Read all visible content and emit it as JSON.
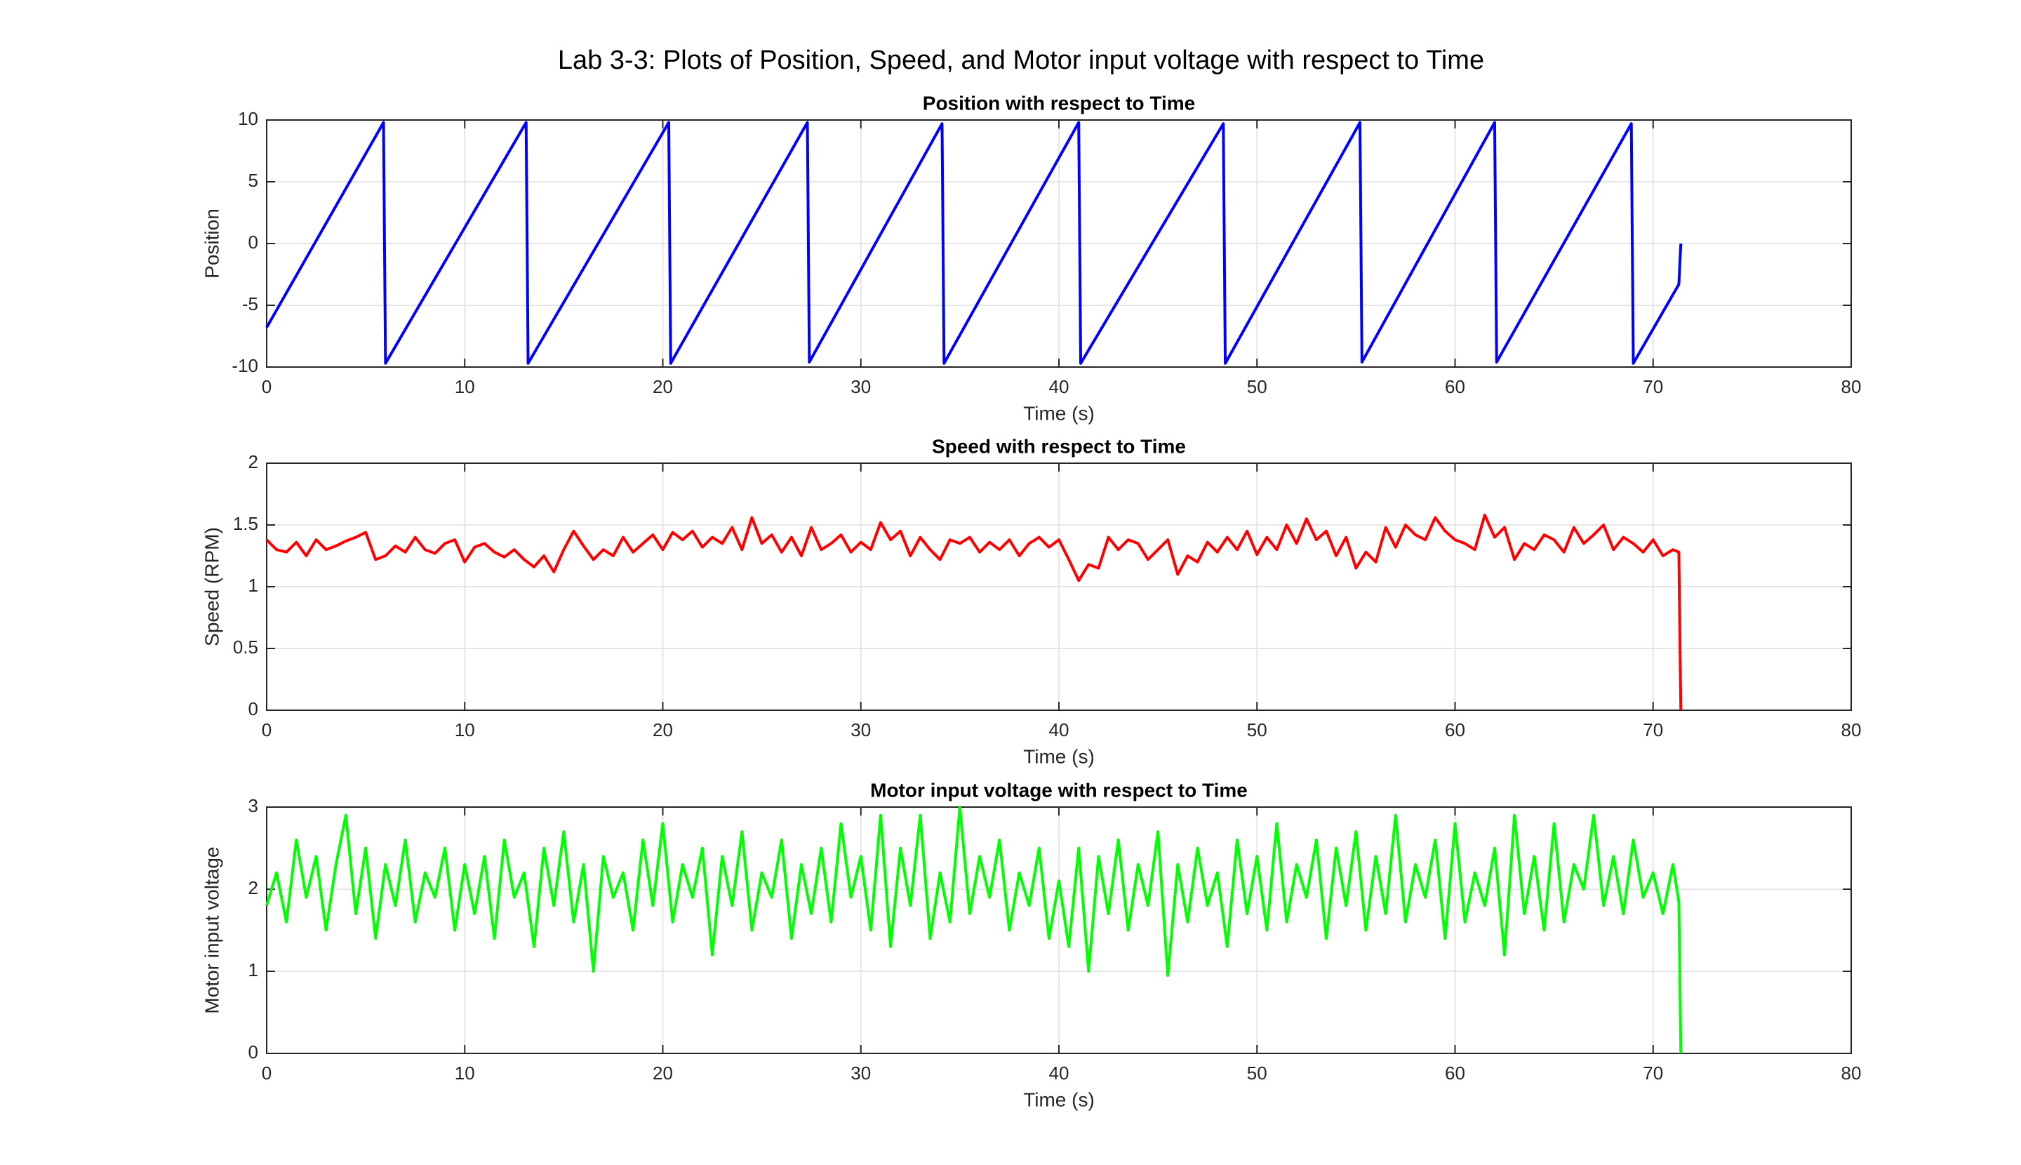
{
  "title": "Lab 3-3: Plots of Position, Speed, and Motor input voltage with respect to Time",
  "chart_data": [
    {
      "type": "line",
      "title": "Position with respect to Time",
      "xlabel": "Time (s)",
      "ylabel": "Position",
      "color": "#0000ff",
      "grid": true,
      "xlim": [
        0,
        80
      ],
      "xticks": [
        0,
        10,
        20,
        30,
        40,
        50,
        60,
        70,
        80
      ],
      "ylim": [
        -10,
        10
      ],
      "yticks": [
        -10,
        -5,
        0,
        5,
        10
      ],
      "x": [
        0,
        5.9,
        6.0,
        13.1,
        13.2,
        20.3,
        20.4,
        27.3,
        27.4,
        34.1,
        34.2,
        41.0,
        41.1,
        48.3,
        48.4,
        55.2,
        55.3,
        62.0,
        62.1,
        68.9,
        69.0,
        71.3,
        71.4
      ],
      "values": [
        -6.8,
        9.8,
        -9.7,
        9.8,
        -9.7,
        9.8,
        -9.7,
        9.8,
        -9.6,
        9.7,
        -9.7,
        9.8,
        -9.7,
        9.7,
        -9.7,
        9.8,
        -9.6,
        9.8,
        -9.6,
        9.7,
        -9.7,
        -3.3,
        0
      ]
    },
    {
      "type": "line",
      "title": "Speed with respect to Time",
      "xlabel": "Time (s)",
      "ylabel": "Speed (RPM)",
      "color": "#ff0000",
      "grid": true,
      "xlim": [
        0,
        80
      ],
      "xticks": [
        0,
        10,
        20,
        30,
        40,
        50,
        60,
        70,
        80
      ],
      "ylim": [
        0,
        2
      ],
      "yticks": [
        0,
        0.5,
        1,
        1.5,
        2
      ],
      "x": [
        0,
        0.5,
        1,
        1.5,
        2,
        2.5,
        3,
        3.5,
        4,
        4.5,
        5,
        5.5,
        6,
        6.5,
        7,
        7.5,
        8,
        8.5,
        9,
        9.5,
        10,
        10.5,
        11,
        11.5,
        12,
        12.5,
        13,
        13.5,
        14,
        14.5,
        15,
        15.5,
        16,
        16.5,
        17,
        17.5,
        18,
        18.5,
        19,
        19.5,
        20,
        20.5,
        21,
        21.5,
        22,
        22.5,
        23,
        23.5,
        24,
        24.5,
        25,
        25.5,
        26,
        26.5,
        27,
        27.5,
        28,
        28.5,
        29,
        29.5,
        30,
        30.5,
        31,
        31.5,
        32,
        32.5,
        33,
        33.5,
        34,
        34.5,
        35,
        35.5,
        36,
        36.5,
        37,
        37.5,
        38,
        38.5,
        39,
        39.5,
        40,
        40.5,
        41,
        41.5,
        42,
        42.5,
        43,
        43.5,
        44,
        44.5,
        45,
        45.5,
        46,
        46.5,
        47,
        47.5,
        48,
        48.5,
        49,
        49.5,
        50,
        50.5,
        51,
        51.5,
        52,
        52.5,
        53,
        53.5,
        54,
        54.5,
        55,
        55.5,
        56,
        56.5,
        57,
        57.5,
        58,
        58.5,
        59,
        59.5,
        60,
        60.5,
        61,
        61.5,
        62,
        62.5,
        63,
        63.5,
        64,
        64.5,
        65,
        65.5,
        66,
        66.5,
        67,
        67.5,
        68,
        68.5,
        69,
        69.5,
        70,
        70.5,
        71,
        71.3,
        71.4
      ],
      "values": [
        1.38,
        1.3,
        1.28,
        1.36,
        1.25,
        1.38,
        1.3,
        1.33,
        1.37,
        1.4,
        1.44,
        1.22,
        1.25,
        1.33,
        1.28,
        1.4,
        1.3,
        1.27,
        1.35,
        1.38,
        1.2,
        1.32,
        1.35,
        1.28,
        1.24,
        1.3,
        1.22,
        1.16,
        1.25,
        1.12,
        1.3,
        1.45,
        1.33,
        1.22,
        1.3,
        1.25,
        1.4,
        1.28,
        1.35,
        1.42,
        1.3,
        1.44,
        1.38,
        1.45,
        1.32,
        1.4,
        1.35,
        1.48,
        1.3,
        1.56,
        1.35,
        1.42,
        1.28,
        1.4,
        1.25,
        1.48,
        1.3,
        1.35,
        1.42,
        1.28,
        1.36,
        1.3,
        1.52,
        1.38,
        1.45,
        1.25,
        1.4,
        1.3,
        1.22,
        1.38,
        1.35,
        1.4,
        1.28,
        1.36,
        1.3,
        1.38,
        1.25,
        1.35,
        1.4,
        1.32,
        1.38,
        1.22,
        1.05,
        1.18,
        1.15,
        1.4,
        1.3,
        1.38,
        1.35,
        1.22,
        1.3,
        1.38,
        1.1,
        1.25,
        1.2,
        1.36,
        1.28,
        1.4,
        1.3,
        1.45,
        1.26,
        1.4,
        1.3,
        1.5,
        1.35,
        1.55,
        1.38,
        1.45,
        1.25,
        1.4,
        1.15,
        1.28,
        1.2,
        1.48,
        1.32,
        1.5,
        1.42,
        1.38,
        1.56,
        1.45,
        1.38,
        1.35,
        1.3,
        1.58,
        1.4,
        1.48,
        1.22,
        1.35,
        1.3,
        1.42,
        1.38,
        1.28,
        1.48,
        1.35,
        1.42,
        1.5,
        1.3,
        1.4,
        1.35,
        1.28,
        1.38,
        1.25,
        1.3,
        1.28,
        0
      ]
    },
    {
      "type": "line",
      "title": "Motor input voltage with respect to Time",
      "xlabel": "Time (s)",
      "ylabel": "Motor input voltage",
      "color": "#00ff00",
      "grid": true,
      "xlim": [
        0,
        80
      ],
      "xticks": [
        0,
        10,
        20,
        30,
        40,
        50,
        60,
        70,
        80
      ],
      "ylim": [
        0,
        3
      ],
      "yticks": [
        0,
        1,
        2,
        3
      ],
      "x": [
        0,
        0.5,
        1,
        1.5,
        2,
        2.5,
        3,
        3.5,
        4,
        4.5,
        5,
        5.5,
        6,
        6.5,
        7,
        7.5,
        8,
        8.5,
        9,
        9.5,
        10,
        10.5,
        11,
        11.5,
        12,
        12.5,
        13,
        13.5,
        14,
        14.5,
        15,
        15.5,
        16,
        16.5,
        17,
        17.5,
        18,
        18.5,
        19,
        19.5,
        20,
        20.5,
        21,
        21.5,
        22,
        22.5,
        23,
        23.5,
        24,
        24.5,
        25,
        25.5,
        26,
        26.5,
        27,
        27.5,
        28,
        28.5,
        29,
        29.5,
        30,
        30.5,
        31,
        31.5,
        32,
        32.5,
        33,
        33.5,
        34,
        34.5,
        35,
        35.5,
        36,
        36.5,
        37,
        37.5,
        38,
        38.5,
        39,
        39.5,
        40,
        40.5,
        41,
        41.5,
        42,
        42.5,
        43,
        43.5,
        44,
        44.5,
        45,
        45.5,
        46,
        46.5,
        47,
        47.5,
        48,
        48.5,
        49,
        49.5,
        50,
        50.5,
        51,
        51.5,
        52,
        52.5,
        53,
        53.5,
        54,
        54.5,
        55,
        55.5,
        56,
        56.5,
        57,
        57.5,
        58,
        58.5,
        59,
        59.5,
        60,
        60.5,
        61,
        61.5,
        62,
        62.5,
        63,
        63.5,
        64,
        64.5,
        65,
        65.5,
        66,
        66.5,
        67,
        67.5,
        68,
        68.5,
        69,
        69.5,
        70,
        70.5,
        71,
        71.3,
        71.4
      ],
      "values": [
        1.8,
        2.2,
        1.6,
        2.6,
        1.9,
        2.4,
        1.5,
        2.3,
        2.9,
        1.7,
        2.5,
        1.4,
        2.3,
        1.8,
        2.6,
        1.6,
        2.2,
        1.9,
        2.5,
        1.5,
        2.3,
        1.7,
        2.4,
        1.4,
        2.6,
        1.9,
        2.2,
        1.3,
        2.5,
        1.8,
        2.7,
        1.6,
        2.3,
        1.0,
        2.4,
        1.9,
        2.2,
        1.5,
        2.6,
        1.8,
        2.8,
        1.6,
        2.3,
        1.9,
        2.5,
        1.2,
        2.4,
        1.8,
        2.7,
        1.5,
        2.2,
        1.9,
        2.6,
        1.4,
        2.3,
        1.7,
        2.5,
        1.6,
        2.8,
        1.9,
        2.4,
        1.5,
        2.9,
        1.3,
        2.5,
        1.8,
        2.9,
        1.4,
        2.2,
        1.6,
        3.0,
        1.7,
        2.4,
        1.9,
        2.6,
        1.5,
        2.2,
        1.8,
        2.5,
        1.4,
        2.1,
        1.3,
        2.5,
        1.0,
        2.4,
        1.7,
        2.6,
        1.5,
        2.3,
        1.8,
        2.7,
        0.95,
        2.3,
        1.6,
        2.5,
        1.8,
        2.2,
        1.3,
        2.6,
        1.7,
        2.4,
        1.5,
        2.8,
        1.6,
        2.3,
        1.9,
        2.6,
        1.4,
        2.5,
        1.8,
        2.7,
        1.5,
        2.4,
        1.7,
        2.9,
        1.6,
        2.3,
        1.9,
        2.6,
        1.4,
        2.8,
        1.6,
        2.2,
        1.8,
        2.5,
        1.2,
        2.9,
        1.7,
        2.4,
        1.5,
        2.8,
        1.6,
        2.3,
        2.0,
        2.9,
        1.8,
        2.4,
        1.7,
        2.6,
        1.9,
        2.2,
        1.7,
        2.3,
        1.85,
        0
      ]
    }
  ]
}
